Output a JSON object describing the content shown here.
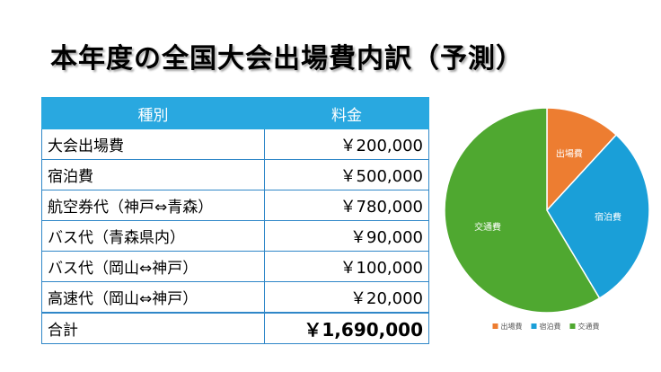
{
  "title": "本年度の全国大会出場費内訳（予測）",
  "table": {
    "headers": [
      "種別",
      "料金"
    ],
    "rows": [
      {
        "label": "大会出場費",
        "amount": "￥200,000"
      },
      {
        "label": "宿泊費",
        "amount": "￥500,000"
      },
      {
        "label": "航空券代（神戸⇔青森）",
        "amount": "￥780,000"
      },
      {
        "label": "バス代（青森県内）",
        "amount": "￥90,000"
      },
      {
        "label": "バス代（岡山⇔神戸）",
        "amount": "￥100,000"
      },
      {
        "label": "高速代（岡山⇔神戸）",
        "amount": "￥20,000"
      }
    ],
    "total": {
      "label": "合計",
      "amount": "￥1,690,000"
    }
  },
  "chart_data": {
    "type": "pie",
    "title": "",
    "slices": [
      {
        "name": "出場費",
        "value": 200000,
        "color": "#ed7d31"
      },
      {
        "name": "宿泊費",
        "value": 500000,
        "color": "#1a9fd8"
      },
      {
        "name": "交通費",
        "value": 990000,
        "color": "#4fa830"
      }
    ],
    "legend_position": "bottom"
  }
}
